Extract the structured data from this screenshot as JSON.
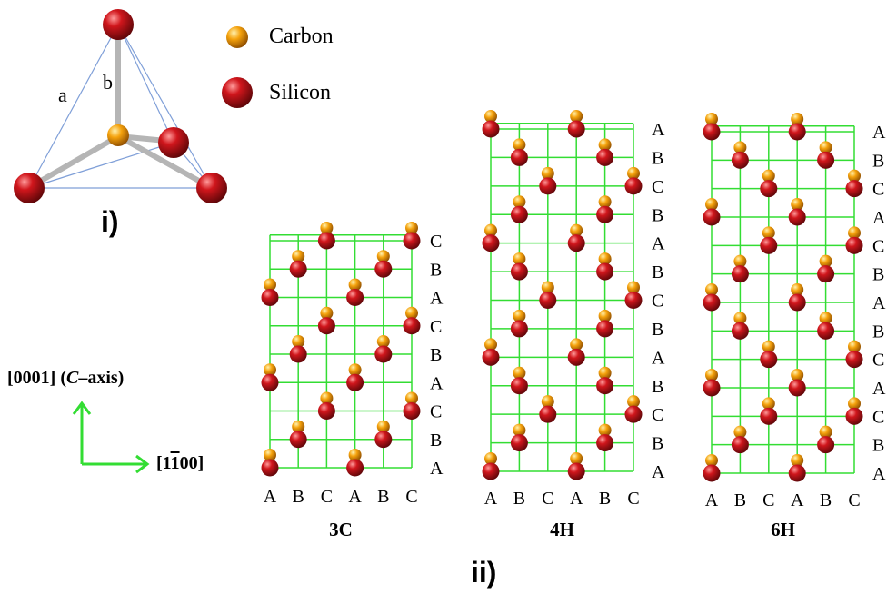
{
  "legend": {
    "carbon": "Carbon",
    "silicon": "Silicon"
  },
  "tetrahedron": {
    "edge_a": "a",
    "edge_b": "b"
  },
  "panel_labels": {
    "i": "i)",
    "ii": "ii)"
  },
  "axes": {
    "vertical": "[0001] (",
    "vertical_italic": "C",
    "vertical_tail": "–axis)",
    "horizontal": "[1",
    "horizontal_bar": "1",
    "horizontal_tail": "00]"
  },
  "colors": {
    "grid": "#33dd33",
    "silicon": "#c0151a",
    "carbon": "#f0a010",
    "arrow": "#33dd33",
    "tetra_edge": "#7f9fd8",
    "bond": "#b8b8b8"
  },
  "polytypes": [
    {
      "name": "3C",
      "layers": [
        "C",
        "B",
        "A",
        "C",
        "B",
        "A",
        "C",
        "B",
        "A"
      ],
      "columns": [
        "A",
        "B",
        "C",
        "A",
        "B",
        "C"
      ]
    },
    {
      "name": "4H",
      "layers": [
        "A",
        "B",
        "C",
        "B",
        "A",
        "B",
        "C",
        "B",
        "A",
        "B",
        "C",
        "B",
        "A"
      ],
      "columns": [
        "A",
        "B",
        "C",
        "A",
        "B",
        "C"
      ]
    },
    {
      "name": "6H",
      "layers": [
        "A",
        "B",
        "C",
        "A",
        "C",
        "B",
        "A",
        "B",
        "C",
        "A",
        "C",
        "B",
        "A"
      ],
      "columns": [
        "A",
        "B",
        "C",
        "A",
        "B",
        "C"
      ]
    }
  ]
}
